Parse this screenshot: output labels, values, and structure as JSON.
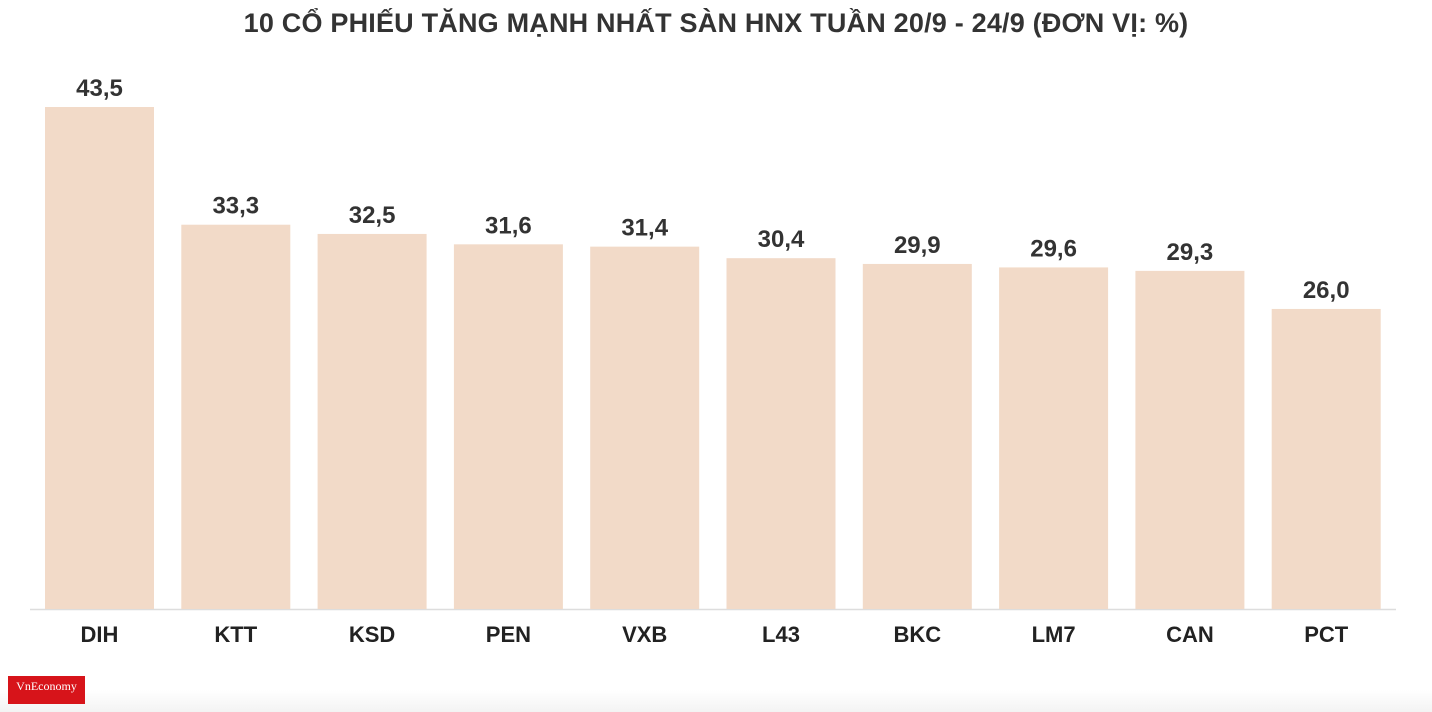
{
  "chart_data": {
    "type": "bar",
    "title": "10 CỔ PHIẾU TĂNG MẠNH NHẤT SÀN HNX TUẦN 20/9 - 24/9 (ĐƠN VỊ: %)",
    "categories": [
      "DIH",
      "KTT",
      "KSD",
      "PEN",
      "VXB",
      "L43",
      "BKC",
      "LM7",
      "CAN",
      "PCT"
    ],
    "values": [
      43.5,
      33.3,
      32.5,
      31.6,
      31.4,
      30.4,
      29.9,
      29.6,
      29.3,
      26.0
    ],
    "value_labels": [
      "43,5",
      "33,3",
      "32,5",
      "31,6",
      "31,4",
      "30,4",
      "29,9",
      "29,6",
      "29,3",
      "26,0"
    ],
    "xlabel": "",
    "ylabel": "",
    "ylim": [
      0,
      43.5
    ],
    "grid": false,
    "bar_color": "#f2dac8",
    "axis_color": "#dddddd"
  },
  "logo_text": "VnEconomy"
}
